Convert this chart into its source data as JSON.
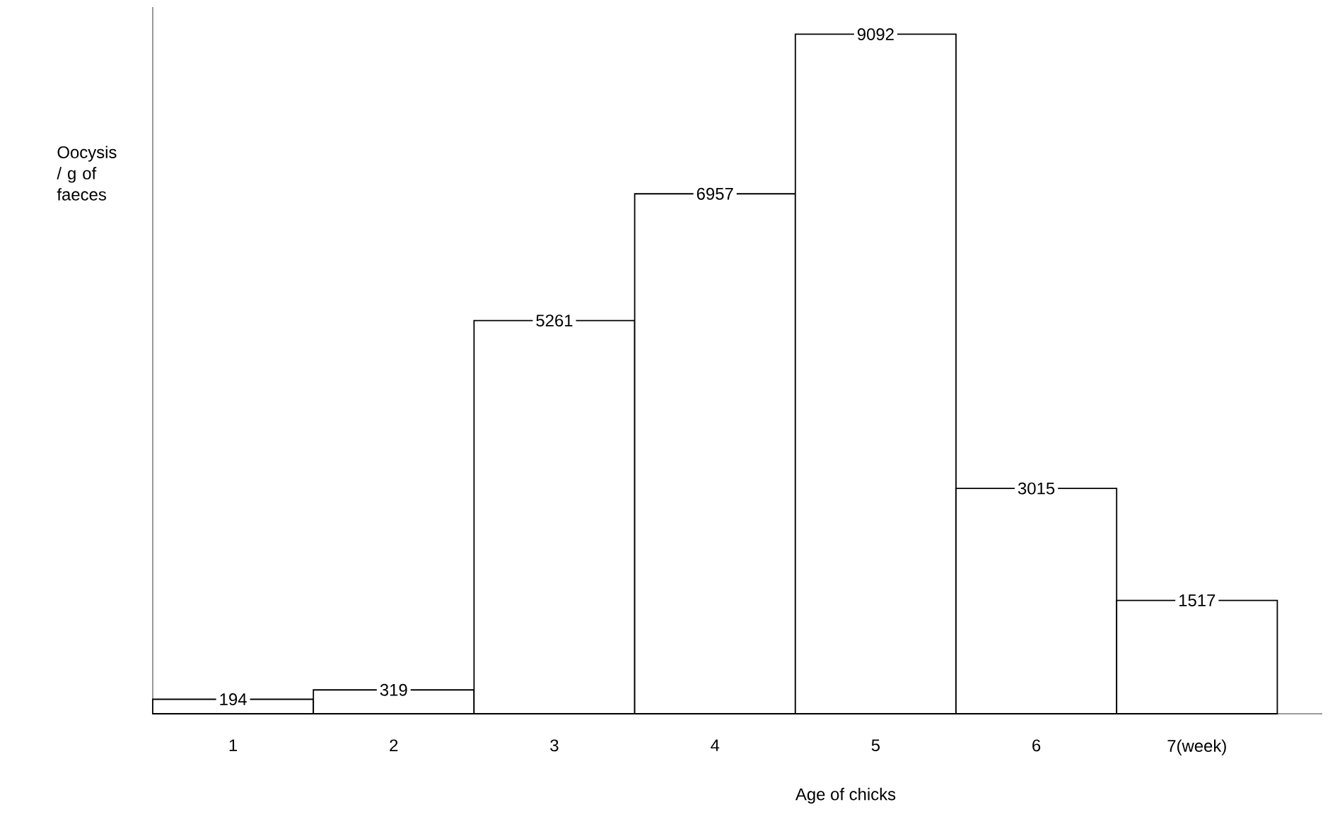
{
  "chart_data": {
    "type": "bar",
    "xlabel": "Age of chicks",
    "ylabel": "Oocysis / g of faeces",
    "categories": [
      "1",
      "2",
      "3",
      "4",
      "5",
      "6",
      "7(week)"
    ],
    "values": [
      194,
      319,
      5261,
      6957,
      9092,
      3015,
      1517
    ],
    "color": "#000000",
    "data_labels": true
  }
}
